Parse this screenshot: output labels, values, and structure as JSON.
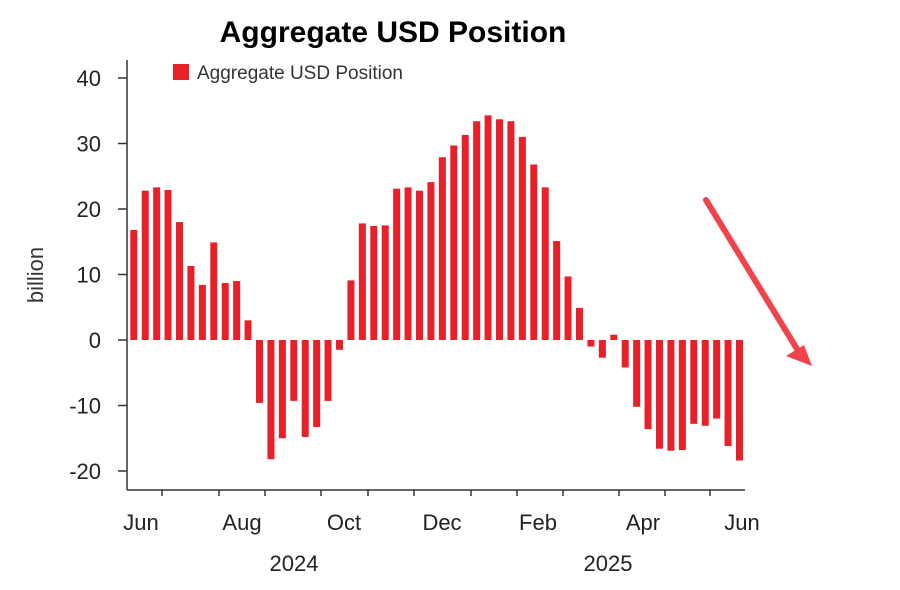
{
  "chart_data": {
    "type": "bar",
    "title": "Aggregate USD Position",
    "ylabel": "billion",
    "xlabel": "",
    "ylim": [
      -22,
      42
    ],
    "yticks": [
      -20,
      -10,
      0,
      10,
      20,
      30,
      40
    ],
    "ytick_labels": [
      "-20",
      "-10",
      "0",
      "10",
      "20",
      "30",
      "40"
    ],
    "x_month_labels": [
      "Jun",
      "Aug",
      "Oct",
      "Dec",
      "Feb",
      "Apr",
      "Jun"
    ],
    "x_year_labels": [
      "2024",
      "2025"
    ],
    "legend": {
      "position": "top-left",
      "label": "Aggregate USD Position"
    },
    "series": [
      {
        "name": "Aggregate USD Position",
        "color": "#e8202a",
        "values": [
          16.8,
          22.8,
          23.3,
          22.9,
          18.0,
          11.3,
          8.4,
          14.9,
          8.7,
          9.0,
          3.0,
          -9.6,
          -18.2,
          -15.0,
          -9.3,
          -14.8,
          -13.3,
          -9.3,
          -1.5,
          9.1,
          17.8,
          17.4,
          17.5,
          23.1,
          23.3,
          22.8,
          24.1,
          27.9,
          29.7,
          31.3,
          33.4,
          34.3,
          33.7,
          33.4,
          31.0,
          26.8,
          23.3,
          15.1,
          9.7,
          4.9,
          -1.0,
          -2.7,
          0.8,
          -4.2,
          -10.2,
          -13.6,
          -16.6,
          -16.9,
          -16.8,
          -12.8,
          -13.1,
          -12.0,
          -16.2,
          -18.4
        ]
      }
    ],
    "annotation": {
      "type": "arrow",
      "color": "#f0444a",
      "direction": "down-right"
    }
  }
}
